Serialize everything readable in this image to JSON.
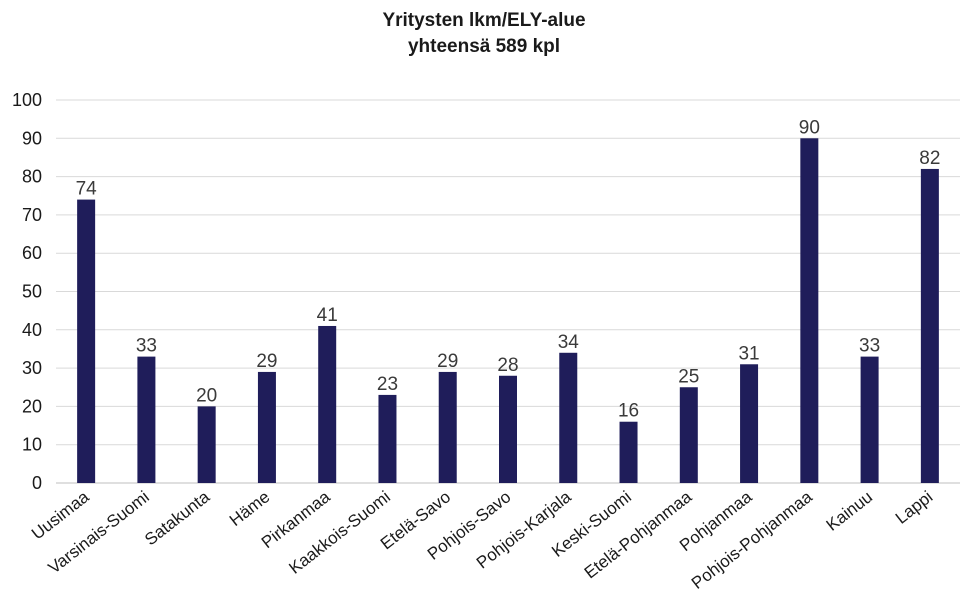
{
  "chart_data": {
    "type": "bar",
    "title": "Yritysten lkm/ELY-alue",
    "subtitle": "yhteensä 589 kpl",
    "categories": [
      "Uusimaa",
      "Varsinais-Suomi",
      "Satakunta",
      "Häme",
      "Pirkanmaa",
      "Kaakkois-Suomi",
      "Etelä-Savo",
      "Pohjois-Savo",
      "Pohjois-Karjala",
      "Keski-Suomi",
      "Etelä-Pohjanmaa",
      "Pohjanmaa",
      "Pohjois-Pohjanmaa",
      "Kainuu",
      "Lappi"
    ],
    "values": [
      74,
      33,
      20,
      29,
      41,
      23,
      29,
      28,
      34,
      16,
      25,
      31,
      90,
      33,
      82
    ],
    "ylim": [
      0,
      100
    ],
    "yticks": [
      0,
      10,
      20,
      30,
      40,
      50,
      60,
      70,
      80,
      90,
      100
    ],
    "grid": true,
    "xlabel": "",
    "ylabel": "",
    "bar_color": "#1f1d5a"
  }
}
